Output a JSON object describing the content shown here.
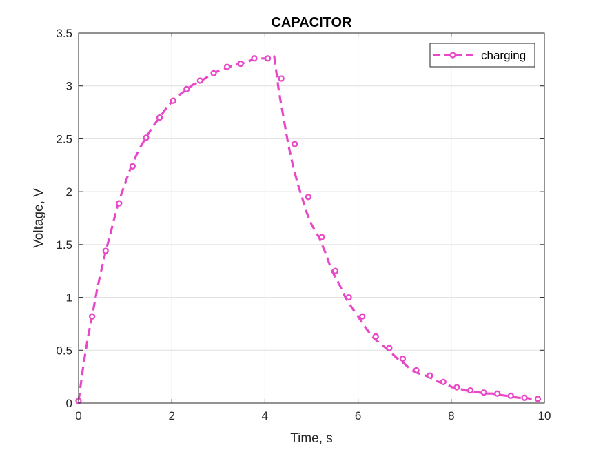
{
  "chart_data": {
    "type": "line",
    "title": "CAPACITOR",
    "xlabel": "Time, s",
    "ylabel": "Voltage, V",
    "xlim": [
      0,
      10
    ],
    "ylim": [
      0,
      3.5
    ],
    "xticks": [
      0,
      2,
      4,
      6,
      8,
      10
    ],
    "xtick_labels": [
      "0",
      "2",
      "4",
      "6",
      "8",
      "10"
    ],
    "yticks": [
      0,
      0.5,
      1,
      1.5,
      2,
      2.5,
      3,
      3.5
    ],
    "ytick_labels": [
      "0",
      "0.5",
      "1",
      "1.5",
      "2",
      "2.5",
      "3",
      "3.5"
    ],
    "grid": true,
    "legend_position": "top-right",
    "series": [
      {
        "name": "charging",
        "color": "#e848c8",
        "line_style": "dashed",
        "marker": "circle",
        "line": {
          "x": [
            0,
            0.1,
            0.2,
            0.29,
            0.4,
            0.5,
            0.58,
            0.7,
            0.85,
            1.0,
            1.13,
            1.3,
            1.43,
            1.6,
            1.72,
            1.85,
            2.0,
            2.15,
            2.3,
            2.45,
            2.6,
            2.75,
            2.88,
            3.0,
            3.15,
            3.3,
            3.45,
            3.6,
            3.73,
            3.9,
            4.0,
            4.15,
            4.2,
            4.3,
            4.4,
            4.5,
            4.6,
            4.7,
            4.8,
            4.9,
            5.0,
            5.17,
            5.3,
            5.44,
            5.6,
            5.73,
            5.87,
            6.0,
            6.15,
            6.3,
            6.45,
            6.6,
            6.75,
            6.87,
            7.0,
            7.15,
            7.3,
            7.45,
            7.6,
            7.73,
            7.9,
            8.02,
            8.15,
            8.3,
            8.45,
            8.6,
            8.75,
            8.88,
            9.0,
            9.17,
            9.3,
            9.45,
            9.6,
            9.73
          ],
          "y": [
            0.02,
            0.35,
            0.62,
            0.82,
            1.08,
            1.28,
            1.43,
            1.63,
            1.89,
            2.08,
            2.24,
            2.4,
            2.5,
            2.62,
            2.69,
            2.77,
            2.85,
            2.91,
            2.96,
            3.01,
            3.04,
            3.08,
            3.12,
            3.14,
            3.17,
            3.19,
            3.21,
            3.22,
            3.25,
            3.26,
            3.26,
            3.28,
            3.28,
            2.95,
            2.7,
            2.45,
            2.25,
            2.08,
            1.94,
            1.8,
            1.69,
            1.56,
            1.42,
            1.25,
            1.12,
            1.0,
            0.9,
            0.82,
            0.72,
            0.63,
            0.57,
            0.52,
            0.46,
            0.41,
            0.37,
            0.31,
            0.28,
            0.26,
            0.23,
            0.2,
            0.18,
            0.15,
            0.14,
            0.12,
            0.11,
            0.1,
            0.09,
            0.09,
            0.08,
            0.07,
            0.06,
            0.05,
            0.05,
            0.04
          ]
        },
        "markers": {
          "x": [
            0,
            0.29,
            0.58,
            0.87,
            1.16,
            1.45,
            1.74,
            2.03,
            2.32,
            2.61,
            2.9,
            3.19,
            3.48,
            3.77,
            4.06,
            4.35,
            4.64,
            4.93,
            5.22,
            5.51,
            5.8,
            6.09,
            6.38,
            6.67,
            6.96,
            7.25,
            7.54,
            7.83,
            8.12,
            8.41,
            8.7,
            8.99,
            9.28,
            9.57,
            9.86
          ],
          "y": [
            0.02,
            0.82,
            1.44,
            1.89,
            2.24,
            2.51,
            2.7,
            2.86,
            2.97,
            3.05,
            3.12,
            3.18,
            3.21,
            3.26,
            3.26,
            3.07,
            2.45,
            1.95,
            1.57,
            1.25,
            1.0,
            0.82,
            0.63,
            0.52,
            0.42,
            0.31,
            0.26,
            0.2,
            0.15,
            0.12,
            0.1,
            0.09,
            0.07,
            0.05,
            0.04
          ]
        }
      }
    ]
  }
}
